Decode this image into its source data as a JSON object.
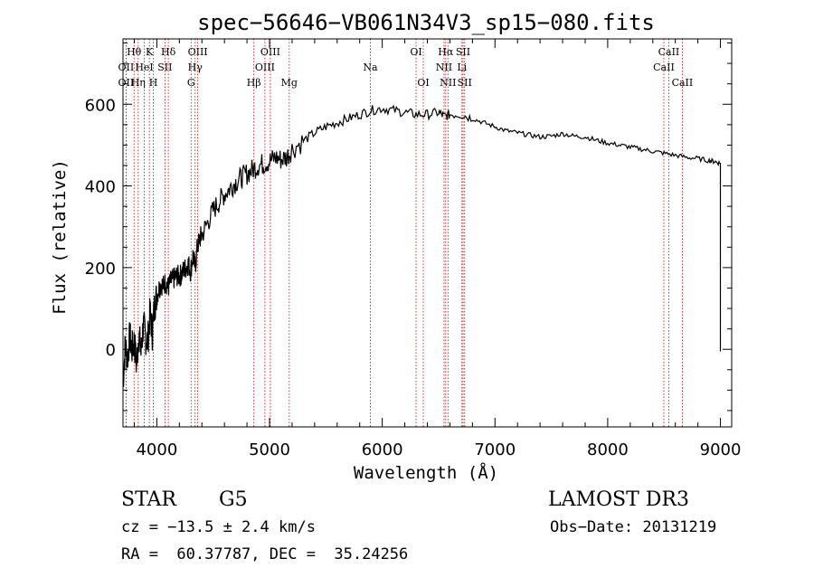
{
  "chart_data": {
    "type": "line",
    "title": "spec−56646−VB061N34V3_sp15−080.fits",
    "xlabel": "Wavelength (Å)",
    "ylabel": "Flux (relative)",
    "xlim": [
      3700,
      9100
    ],
    "ylim": [
      -190,
      760
    ],
    "x_ticks": [
      4000,
      5000,
      6000,
      7000,
      8000,
      9000
    ],
    "x_tick_labels": [
      "4000",
      "5000",
      "6000",
      "7000",
      "8000",
      "9000"
    ],
    "y_ticks": [
      0,
      200,
      400,
      600
    ],
    "y_tick_labels": [
      "0",
      "200",
      "400",
      "600"
    ],
    "series": [
      {
        "name": "flux",
        "color": "#000000",
        "points": [
          [
            3700,
            -80
          ],
          [
            3720,
            10
          ],
          [
            3740,
            -20
          ],
          [
            3760,
            30
          ],
          [
            3780,
            0
          ],
          [
            3800,
            20
          ],
          [
            3820,
            -40
          ],
          [
            3840,
            40
          ],
          [
            3860,
            -10
          ],
          [
            3880,
            60
          ],
          [
            3900,
            30
          ],
          [
            3920,
            20
          ],
          [
            3940,
            90
          ],
          [
            3960,
            40
          ],
          [
            3980,
            110
          ],
          [
            4000,
            130
          ],
          [
            4020,
            150
          ],
          [
            4040,
            160
          ],
          [
            4060,
            155
          ],
          [
            4080,
            165
          ],
          [
            4100,
            150
          ],
          [
            4120,
            165
          ],
          [
            4140,
            170
          ],
          [
            4160,
            175
          ],
          [
            4180,
            180
          ],
          [
            4200,
            178
          ],
          [
            4220,
            185
          ],
          [
            4240,
            195
          ],
          [
            4260,
            200
          ],
          [
            4280,
            210
          ],
          [
            4300,
            190
          ],
          [
            4320,
            230
          ],
          [
            4340,
            200
          ],
          [
            4360,
            250
          ],
          [
            4380,
            270
          ],
          [
            4400,
            280
          ],
          [
            4450,
            310
          ],
          [
            4500,
            340
          ],
          [
            4550,
            360
          ],
          [
            4600,
            380
          ],
          [
            4650,
            395
          ],
          [
            4700,
            410
          ],
          [
            4750,
            420
          ],
          [
            4800,
            430
          ],
          [
            4850,
            440
          ],
          [
            4900,
            450
          ],
          [
            4950,
            455
          ],
          [
            5000,
            460
          ],
          [
            5050,
            470
          ],
          [
            5100,
            465
          ],
          [
            5150,
            470
          ],
          [
            5200,
            490
          ],
          [
            5300,
            510
          ],
          [
            5400,
            530
          ],
          [
            5500,
            545
          ],
          [
            5600,
            555
          ],
          [
            5700,
            565
          ],
          [
            5800,
            575
          ],
          [
            5900,
            585
          ],
          [
            6000,
            590
          ],
          [
            6100,
            585
          ],
          [
            6200,
            580
          ],
          [
            6300,
            575
          ],
          [
            6400,
            575
          ],
          [
            6500,
            580
          ],
          [
            6550,
            570
          ],
          [
            6600,
            575
          ],
          [
            6700,
            575
          ],
          [
            6800,
            565
          ],
          [
            6900,
            555
          ],
          [
            7000,
            545
          ],
          [
            7100,
            535
          ],
          [
            7200,
            530
          ],
          [
            7300,
            525
          ],
          [
            7400,
            520
          ],
          [
            7500,
            522
          ],
          [
            7600,
            528
          ],
          [
            7700,
            522
          ],
          [
            7800,
            520
          ],
          [
            7900,
            512
          ],
          [
            8000,
            505
          ],
          [
            8100,
            500
          ],
          [
            8200,
            495
          ],
          [
            8300,
            490
          ],
          [
            8400,
            485
          ],
          [
            8500,
            480
          ],
          [
            8600,
            475
          ],
          [
            8700,
            470
          ],
          [
            8800,
            467
          ],
          [
            8900,
            462
          ],
          [
            8950,
            460
          ],
          [
            9000,
            455
          ]
        ]
      }
    ],
    "line_markers": [
      {
        "wavelength": 3727,
        "label": "OII",
        "row": 2
      },
      {
        "wavelength": 3727,
        "label": "OII",
        "row": 3
      },
      {
        "wavelength": 3798,
        "label": "Hθ",
        "row": 1
      },
      {
        "wavelength": 3835,
        "label": "Hη",
        "row": 3
      },
      {
        "wavelength": 3889,
        "label": "HeI",
        "row": 2
      },
      {
        "wavelength": 3934,
        "label": "K",
        "row": 1
      },
      {
        "wavelength": 3969,
        "label": "H",
        "row": 3
      },
      {
        "wavelength": 4072,
        "label": "SII",
        "row": 2
      },
      {
        "wavelength": 4102,
        "label": "Hδ",
        "row": 1
      },
      {
        "wavelength": 4304,
        "label": "G",
        "row": 3
      },
      {
        "wavelength": 4340,
        "label": "Hγ",
        "row": 2
      },
      {
        "wavelength": 4363,
        "label": "OIII",
        "row": 1
      },
      {
        "wavelength": 4861,
        "label": "Hβ",
        "row": 3
      },
      {
        "wavelength": 4959,
        "label": "OIII",
        "row": 2
      },
      {
        "wavelength": 5007,
        "label": "OIII",
        "row": 1
      },
      {
        "wavelength": 5175,
        "label": "Mg",
        "row": 3
      },
      {
        "wavelength": 5894,
        "label": "Na",
        "row": 2
      },
      {
        "wavelength": 6300,
        "label": "OI",
        "row": 1
      },
      {
        "wavelength": 6364,
        "label": "OI",
        "row": 3
      },
      {
        "wavelength": 6548,
        "label": "NII",
        "row": 2
      },
      {
        "wavelength": 6563,
        "label": "Hα",
        "row": 1
      },
      {
        "wavelength": 6583,
        "label": "NII",
        "row": 3
      },
      {
        "wavelength": 6707,
        "label": "Li",
        "row": 2
      },
      {
        "wavelength": 6717,
        "label": "SII",
        "row": 1
      },
      {
        "wavelength": 6731,
        "label": "SII",
        "row": 3
      },
      {
        "wavelength": 8498,
        "label": "CaII",
        "row": 2
      },
      {
        "wavelength": 8542,
        "label": "CaII",
        "row": 1
      },
      {
        "wavelength": 8662,
        "label": "CaII",
        "row": 3
      }
    ],
    "marker_color": "#cc0000"
  },
  "footer": {
    "object_class": "STAR",
    "subclass": "G5",
    "survey": "LAMOST DR3",
    "redshift": "cz = −13.5 ± 2.4 km/s",
    "obs_date": "Obs−Date: 20131219",
    "coords": "RA =  60.37787, DEC =  35.24256"
  }
}
